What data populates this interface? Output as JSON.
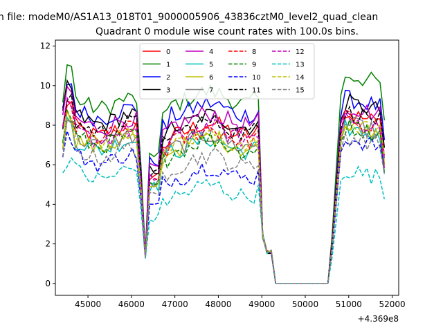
{
  "header_text": "n file: modeM0/AS1A13_018T01_9000005906_43836cztM0_level2_quad_clean",
  "chart_data": {
    "type": "line",
    "title": "Quadrant 0 module wise count rates with 100.0s bins.",
    "xlabel": "",
    "ylabel": "",
    "x_offset_label": "+4.369e8",
    "xlim": [
      44250,
      52150
    ],
    "ylim": [
      -0.6,
      12.3
    ],
    "xticks": [
      45000,
      46000,
      47000,
      48000,
      49000,
      50000,
      51000,
      52000
    ],
    "yticks": [
      0,
      2,
      4,
      6,
      8,
      10,
      12
    ],
    "grid": false,
    "legend": {
      "placement": "top-center",
      "columns": 4
    },
    "series_meta": [
      {
        "name": "0",
        "color": "#ff0000",
        "dash": "solid",
        "base": 7.7,
        "peak": 9.6,
        "mid": 7.8,
        "late": 8.6
      },
      {
        "name": "1",
        "color": "#008000",
        "dash": "solid",
        "base": 9.1,
        "peak": 11.7,
        "mid": 9.4,
        "late": 10.6
      },
      {
        "name": "2",
        "color": "#0000ff",
        "dash": "solid",
        "base": 8.6,
        "peak": 10.7,
        "mid": 8.8,
        "late": 9.4
      },
      {
        "name": "3",
        "color": "#000000",
        "dash": "solid",
        "base": 8.3,
        "peak": 10.5,
        "mid": 8.2,
        "late": 9.2
      },
      {
        "name": "4",
        "color": "#bf00bf",
        "dash": "solid",
        "base": 8.1,
        "peak": 10.3,
        "mid": 8.3,
        "late": 9.0
      },
      {
        "name": "5",
        "color": "#00bfbf",
        "dash": "solid",
        "base": 7.0,
        "peak": 8.6,
        "mid": 7.0,
        "late": 7.9
      },
      {
        "name": "6",
        "color": "#bfbf00",
        "dash": "solid",
        "base": 7.1,
        "peak": 8.9,
        "mid": 7.1,
        "late": 8.0
      },
      {
        "name": "7",
        "color": "#808080",
        "dash": "solid",
        "base": 7.2,
        "peak": 8.8,
        "mid": 7.2,
        "late": 8.1
      },
      {
        "name": "8",
        "color": "#ff0000",
        "dash": "dashed",
        "base": 7.6,
        "peak": 9.6,
        "mid": 7.5,
        "late": 8.4
      },
      {
        "name": "9",
        "color": "#008000",
        "dash": "dashed",
        "base": 7.2,
        "peak": 9.0,
        "mid": 7.0,
        "late": 8.0
      },
      {
        "name": "10",
        "color": "#0000ff",
        "dash": "dashed",
        "base": 6.3,
        "peak": 7.8,
        "mid": 5.6,
        "late": 7.4
      },
      {
        "name": "11",
        "color": "#000000",
        "dash": "dashed",
        "base": 7.9,
        "peak": 9.9,
        "mid": 7.9,
        "late": 8.7
      },
      {
        "name": "12",
        "color": "#bf00bf",
        "dash": "dashed",
        "base": 7.5,
        "peak": 9.4,
        "mid": 7.6,
        "late": 8.3
      },
      {
        "name": "13",
        "color": "#00bfbf",
        "dash": "dashed",
        "base": 5.5,
        "peak": 6.6,
        "mid": 4.7,
        "late": 5.8
      },
      {
        "name": "14",
        "color": "#bfbf00",
        "dash": "dashed",
        "base": 7.3,
        "peak": 9.1,
        "mid": 7.2,
        "late": 8.1
      },
      {
        "name": "15",
        "color": "#808080",
        "dash": "dashed",
        "base": 6.6,
        "peak": 8.3,
        "mid": 6.2,
        "late": 7.5
      }
    ]
  }
}
